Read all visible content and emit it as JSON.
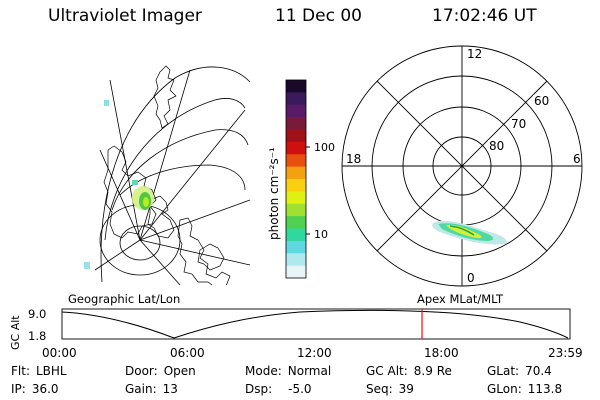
{
  "header": {
    "instrument": "Ultraviolet Imager",
    "date": "11 Dec 00",
    "time": "17:02:46 UT"
  },
  "colorbar": {
    "unit_label": "photon cm⁻²s⁻¹",
    "ticks": [
      "100",
      "10"
    ],
    "colors": [
      "#1a0a2a",
      "#3a1a5a",
      "#5a1a6a",
      "#7a1a3a",
      "#a01018",
      "#d01010",
      "#e85010",
      "#f5a010",
      "#f8d010",
      "#e0f010",
      "#a0e030",
      "#50d050",
      "#30d8a0",
      "#60d8e0",
      "#b0e8f0",
      "#e8f4f8"
    ]
  },
  "polar_plot": {
    "mlt_labels": [
      "12",
      "18",
      "6",
      "0"
    ],
    "mlat_labels": [
      "60",
      "70",
      "80"
    ]
  },
  "map_labels": {
    "left": "Geographic Lat/Lon",
    "right": "Apex MLat/MLT"
  },
  "timeline": {
    "y_axis_label": "GC Alt",
    "y_ticks": [
      "9.0",
      "1.8"
    ],
    "x_ticks": [
      "00:00",
      "06:00",
      "12:00",
      "18:00",
      "23:59"
    ],
    "current_marker_time": "17:02:46"
  },
  "info": {
    "filter": {
      "label": "Flt:",
      "value": "LBHL"
    },
    "ip": {
      "label": "IP:",
      "value": "36.0"
    },
    "door": {
      "label": "Door:",
      "value": "Open"
    },
    "gain": {
      "label": "Gain:",
      "value": "13"
    },
    "mode": {
      "label": "Mode:",
      "value": "Normal"
    },
    "dsp": {
      "label": "Dsp:",
      "value": "-5.0"
    },
    "gc_alt": {
      "label": "GC Alt:",
      "value": "8.9 Re"
    },
    "seq": {
      "label": "Seq:",
      "value": "39"
    },
    "glat": {
      "label": "GLat:",
      "value": "70.4"
    },
    "glon": {
      "label": "GLon:",
      "value": "113.8"
    }
  }
}
